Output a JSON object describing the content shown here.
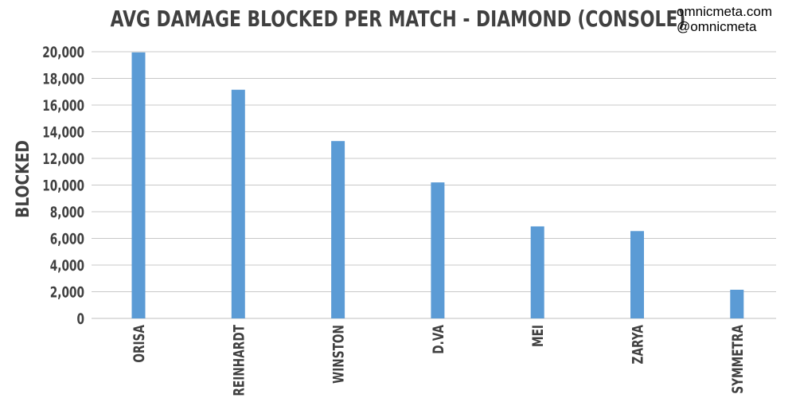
{
  "credits": {
    "site": "omnicmeta.com",
    "handle": "@omnicmeta"
  },
  "chart_data": {
    "type": "bar",
    "title": "AVG DAMAGE BLOCKED PER MATCH - DIAMOND (CONSOLE)",
    "xlabel": "",
    "ylabel": "BLOCKED",
    "categories": [
      "ORISA",
      "REINHARDT",
      "WINSTON",
      "D.VA",
      "MEI",
      "ZARYA",
      "SYMMETRA"
    ],
    "values": [
      19950,
      17150,
      13300,
      10200,
      6900,
      6550,
      2150
    ],
    "ylim": [
      0,
      20000
    ],
    "yticks": [
      0,
      2000,
      4000,
      6000,
      8000,
      10000,
      12000,
      14000,
      16000,
      18000,
      20000
    ],
    "ytick_labels": [
      "0",
      "2,000",
      "4,000",
      "6,000",
      "8,000",
      "10,000",
      "12,000",
      "14,000",
      "16,000",
      "18,000",
      "20,000"
    ],
    "grid": true,
    "legend": "none",
    "colors": {
      "bar": "#5b9bd5",
      "grid": "#c8c8c8",
      "text": "#404040"
    }
  }
}
